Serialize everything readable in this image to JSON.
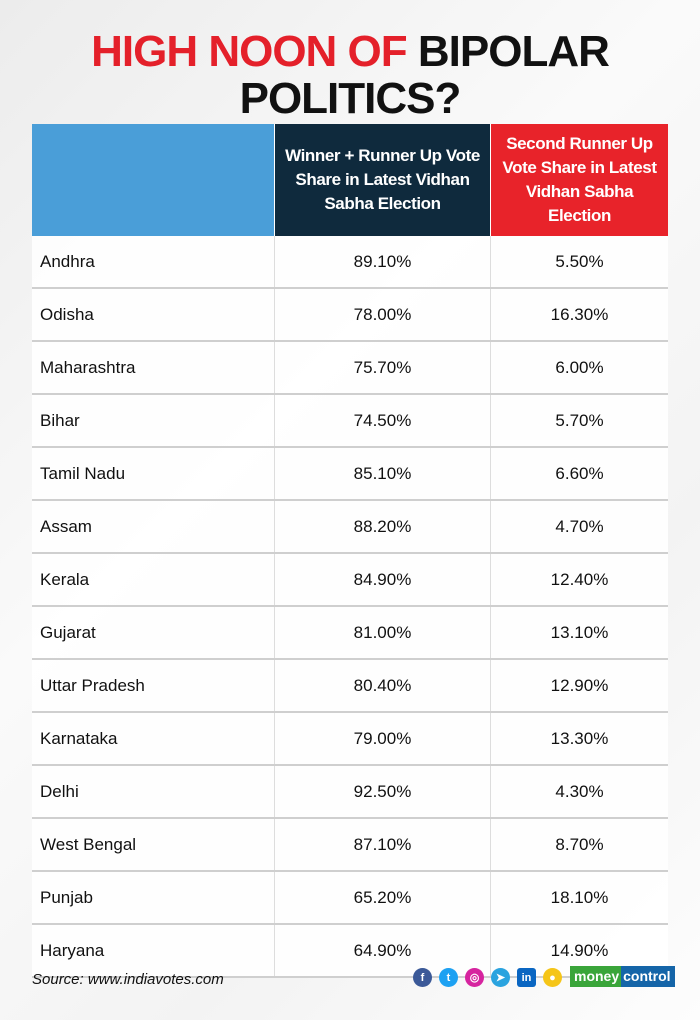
{
  "title": {
    "part1": "HIGH NOON OF",
    "part2": "BIPOLAR",
    "line2": "POLITICS?"
  },
  "colors": {
    "title_red": "#e4202a",
    "header_blue": "#4a9ed8",
    "header_navy": "#0f2a3d",
    "header_red": "#e8232a"
  },
  "chart_data": {
    "type": "table",
    "columns": [
      "",
      "Winner + Runner Up Vote Share in Latest Vidhan Sabha Election",
      "Second Runner Up Vote Share in Latest Vidhan Sabha Election"
    ],
    "rows": [
      [
        "Andhra",
        "89.10%",
        "5.50%"
      ],
      [
        "Odisha",
        "78.00%",
        "16.30%"
      ],
      [
        "Maharashtra",
        "75.70%",
        "6.00%"
      ],
      [
        "Bihar",
        "74.50%",
        "5.70%"
      ],
      [
        "Tamil Nadu",
        "85.10%",
        "6.60%"
      ],
      [
        "Assam",
        "88.20%",
        "4.70%"
      ],
      [
        "Kerala",
        "84.90%",
        "12.40%"
      ],
      [
        "Gujarat",
        "81.00%",
        "13.10%"
      ],
      [
        "Uttar Pradesh",
        "80.40%",
        "12.90%"
      ],
      [
        "Karnataka",
        "79.00%",
        "13.30%"
      ],
      [
        "Delhi",
        "92.50%",
        "4.30%"
      ],
      [
        "West Bengal",
        "87.10%",
        "8.70%"
      ],
      [
        "Punjab",
        "65.20%",
        "18.10%"
      ],
      [
        "Haryana",
        "64.90%",
        "14.90%"
      ]
    ]
  },
  "footer": {
    "source": "Source: www.indiavotes.com",
    "social_icons": [
      "facebook-icon",
      "twitter-icon",
      "instagram-icon",
      "telegram-icon",
      "linkedin-icon",
      "koo-icon"
    ],
    "logo_part1": "money",
    "logo_part2": "control"
  }
}
